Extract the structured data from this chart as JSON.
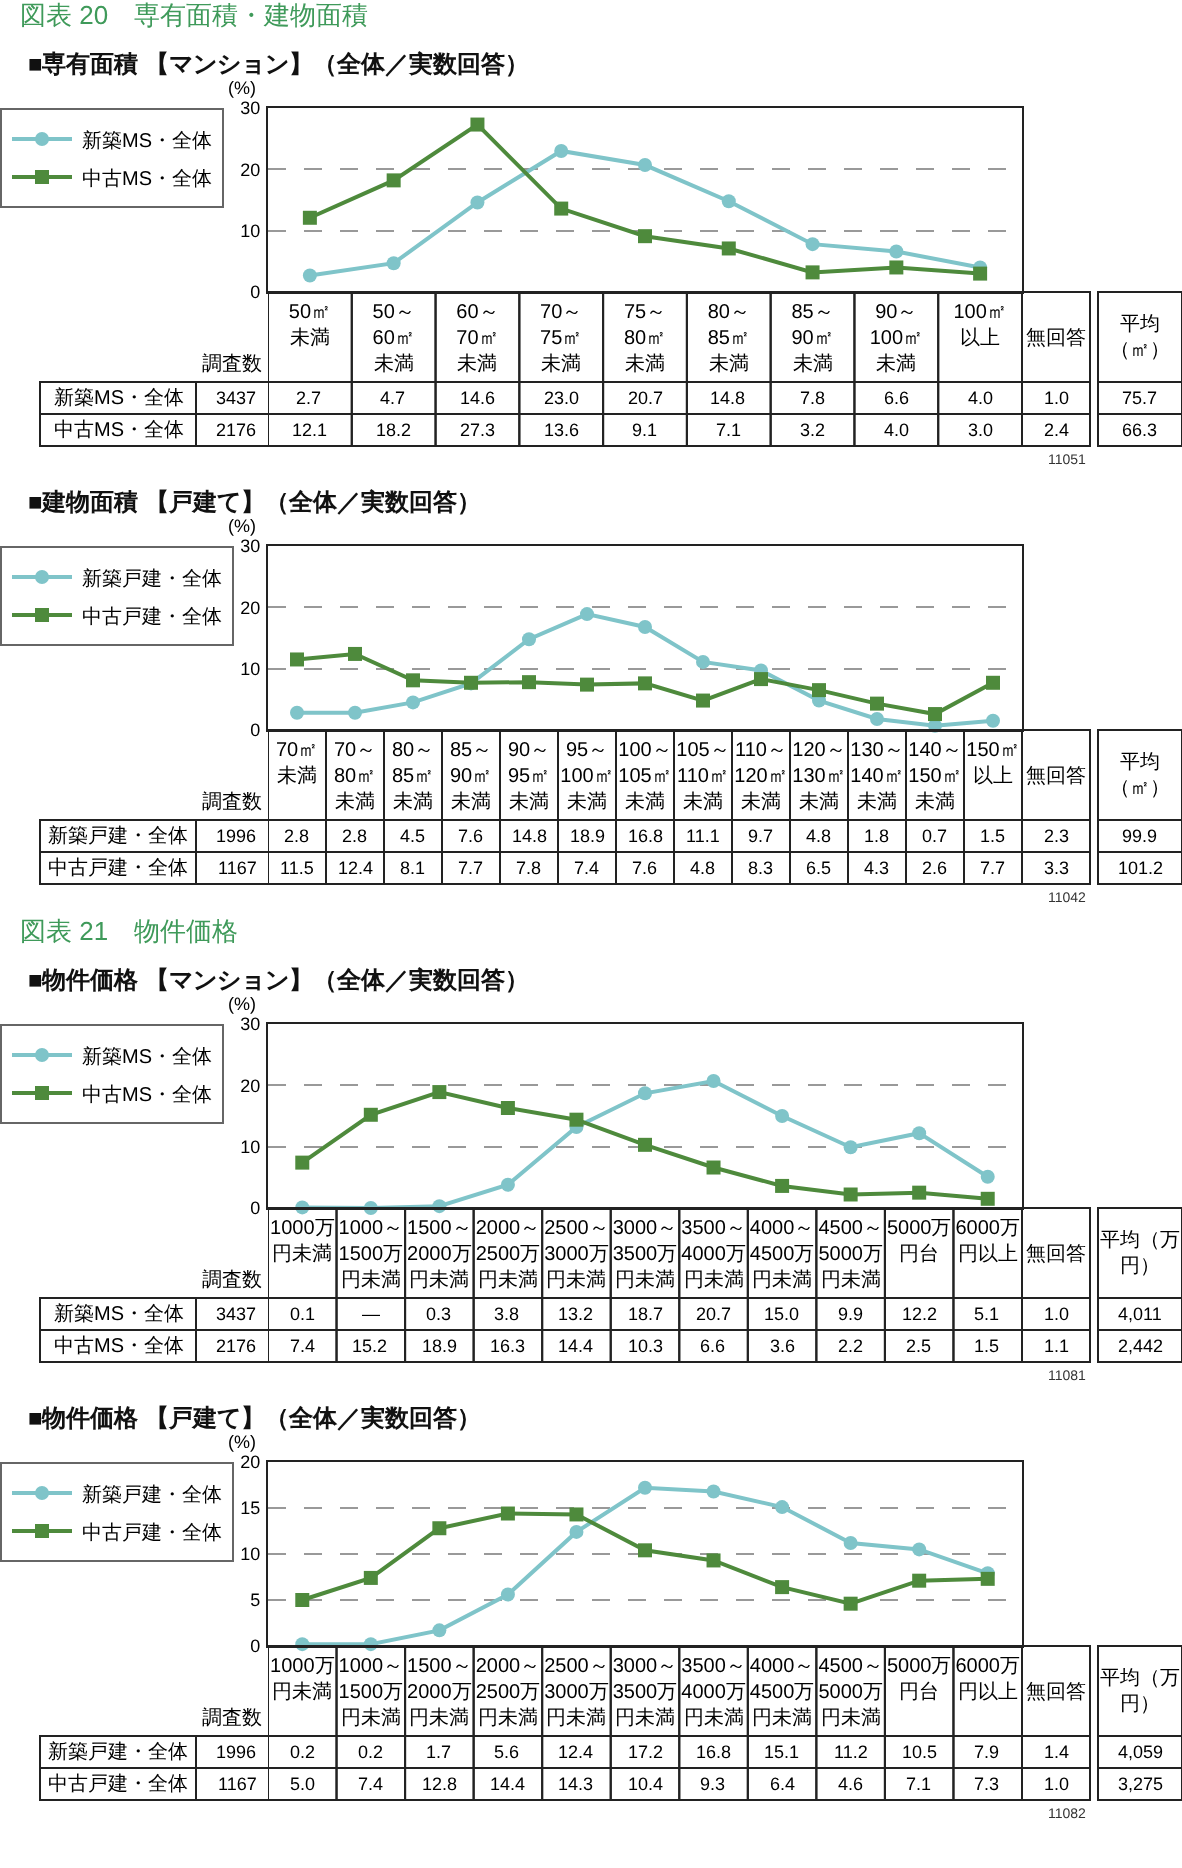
{
  "chart_data": [
    {
      "type": "line",
      "title": "図表 20　専有面積・建物面積",
      "subtitle": "■専有面積 【マンション】（全体／実数回答）",
      "ylabel": "(%)",
      "categories": [
        "50㎡未満",
        "50～60㎡未満",
        "60～70㎡未満",
        "70～75㎡未満",
        "75～80㎡未満",
        "80～85㎡未満",
        "85～90㎡未満",
        "90～100㎡未満",
        "100㎡以上"
      ],
      "series": [
        {
          "name": "新築MS・全体",
          "color": "#7fc4c9",
          "marker": "circle",
          "values": [
            2.7,
            4.7,
            14.6,
            23.0,
            20.7,
            14.8,
            7.8,
            6.6,
            4.0
          ],
          "value_labels": [
            "2.7",
            "4.7",
            "14.6",
            "23.0",
            "20.7",
            "14.8",
            "7.8",
            "6.6",
            "4.0"
          ]
        },
        {
          "name": "中古MS・全体",
          "color": "#4e8a3c",
          "marker": "square",
          "values": [
            12.1,
            18.2,
            27.3,
            13.6,
            9.1,
            7.1,
            3.2,
            4.0,
            3.0
          ],
          "value_labels": [
            "12.1",
            "18.2",
            "27.3",
            "13.6",
            "9.1",
            "7.1",
            "3.2",
            "4.0",
            "3.0"
          ]
        }
      ],
      "ylim": [
        0,
        30
      ],
      "yticks": [
        0,
        10,
        20,
        30
      ],
      "grid": "y",
      "legend": "left",
      "line_style": "solid",
      "annotations": [
        "調査数",
        "3437",
        "2176",
        "無回答",
        "1.0",
        "2.4",
        "平均（㎡）",
        "75.7",
        "66.3",
        "11051"
      ]
    },
    {
      "type": "line",
      "title": "■建物面積 【戸建て】（全体／実数回答）",
      "ylabel": "(%)",
      "categories": [
        "70㎡未満",
        "70～80㎡未満",
        "80～85㎡未満",
        "85～90㎡未満",
        "90～95㎡未満",
        "95～100㎡未満",
        "100～105㎡未満",
        "105～110㎡未満",
        "110～120㎡未満",
        "120～130㎡未満",
        "130～140㎡未満",
        "140～150㎡未満",
        "150㎡以上"
      ],
      "series": [
        {
          "name": "新築戸建・全体",
          "color": "#7fc4c9",
          "marker": "circle",
          "values": [
            2.8,
            2.8,
            4.5,
            7.6,
            14.8,
            18.9,
            16.8,
            11.1,
            9.7,
            4.8,
            1.8,
            0.7,
            1.5
          ],
          "value_labels": [
            "2.8",
            "2.8",
            "4.5",
            "7.6",
            "14.8",
            "18.9",
            "16.8",
            "11.1",
            "9.7",
            "4.8",
            "1.8",
            "0.7",
            "1.5"
          ]
        },
        {
          "name": "中古戸建・全体",
          "color": "#4e8a3c",
          "marker": "square",
          "values": [
            11.5,
            12.4,
            8.1,
            7.7,
            7.8,
            7.4,
            7.6,
            4.8,
            8.3,
            6.5,
            4.3,
            2.6,
            7.7
          ],
          "value_labels": [
            "11.5",
            "12.4",
            "8.1",
            "7.7",
            "7.8",
            "7.4",
            "7.6",
            "4.8",
            "8.3",
            "6.5",
            "4.3",
            "2.6",
            "7.7"
          ]
        }
      ],
      "ylim": [
        0,
        30
      ],
      "yticks": [
        0,
        10,
        20,
        30
      ],
      "grid": "y",
      "legend": "left",
      "line_style": "solid",
      "annotations": [
        "調査数",
        "1996",
        "1167",
        "無回答",
        "2.3",
        "3.3",
        "平均（㎡）",
        "99.9",
        "101.2",
        "11042"
      ]
    },
    {
      "type": "line",
      "title": "図表 21　物件価格",
      "subtitle": "■物件価格 【マンション】（全体／実数回答）",
      "ylabel": "(%)",
      "categories": [
        "1000万円未満",
        "1000～1500万円未満",
        "1500～2000万円未満",
        "2000～2500万円未満",
        "2500～3000万円未満",
        "3000～3500万円未満",
        "3500～4000万円未満",
        "4000～4500万円未満",
        "4500～5000万円未満",
        "5000万円台",
        "6000万円以上"
      ],
      "series": [
        {
          "name": "新築MS・全体",
          "color": "#7fc4c9",
          "marker": "circle",
          "values": [
            0.1,
            0,
            0.3,
            3.8,
            13.2,
            18.7,
            20.7,
            15.0,
            9.9,
            12.2,
            5.1
          ],
          "value_labels": [
            "0.1",
            "—",
            "0.3",
            "3.8",
            "13.2",
            "18.7",
            "20.7",
            "15.0",
            "9.9",
            "12.2",
            "5.1"
          ]
        },
        {
          "name": "中古MS・全体",
          "color": "#4e8a3c",
          "marker": "square",
          "values": [
            7.4,
            15.2,
            18.9,
            16.3,
            14.4,
            10.3,
            6.6,
            3.6,
            2.2,
            2.5,
            1.5
          ],
          "value_labels": [
            "7.4",
            "15.2",
            "18.9",
            "16.3",
            "14.4",
            "10.3",
            "6.6",
            "3.6",
            "2.2",
            "2.5",
            "1.5"
          ]
        }
      ],
      "ylim": [
        0,
        30
      ],
      "yticks": [
        0,
        10,
        20,
        30
      ],
      "grid": "y",
      "legend": "left",
      "line_style": "solid",
      "annotations": [
        "調査数",
        "3437",
        "2176",
        "無回答",
        "1.0",
        "1.1",
        "平均（万円）",
        "4,011",
        "2,442",
        "11081"
      ]
    },
    {
      "type": "line",
      "title": "■物件価格 【戸建て】（全体／実数回答）",
      "ylabel": "(%)",
      "categories": [
        "1000万円未満",
        "1000～1500万円未満",
        "1500～2000万円未満",
        "2000～2500万円未満",
        "2500～3000万円未満",
        "3000～3500万円未満",
        "3500～4000万円未満",
        "4000～4500万円未満",
        "4500～5000万円未満",
        "5000万円台",
        "6000万円以上"
      ],
      "series": [
        {
          "name": "新築戸建・全体",
          "color": "#7fc4c9",
          "marker": "circle",
          "values": [
            0.2,
            0.2,
            1.7,
            5.6,
            12.4,
            17.2,
            16.8,
            15.1,
            11.2,
            10.5,
            7.9
          ],
          "value_labels": [
            "0.2",
            "0.2",
            "1.7",
            "5.6",
            "12.4",
            "17.2",
            "16.8",
            "15.1",
            "11.2",
            "10.5",
            "7.9"
          ]
        },
        {
          "name": "中古戸建・全体",
          "color": "#4e8a3c",
          "marker": "square",
          "values": [
            5.0,
            7.4,
            12.8,
            14.4,
            14.3,
            10.4,
            9.3,
            6.4,
            4.6,
            7.1,
            7.3
          ],
          "value_labels": [
            "5.0",
            "7.4",
            "12.8",
            "14.4",
            "14.3",
            "10.4",
            "9.3",
            "6.4",
            "4.6",
            "7.1",
            "7.3"
          ]
        }
      ],
      "ylim": [
        0,
        20
      ],
      "yticks": [
        0,
        5,
        10,
        15,
        20
      ],
      "grid": "y",
      "legend": "left",
      "line_style": "solid",
      "annotations": [
        "調査数",
        "1996",
        "1167",
        "無回答",
        "1.4",
        "1.0",
        "平均（万円）",
        "4,059",
        "3,275",
        "11082"
      ]
    }
  ]
}
